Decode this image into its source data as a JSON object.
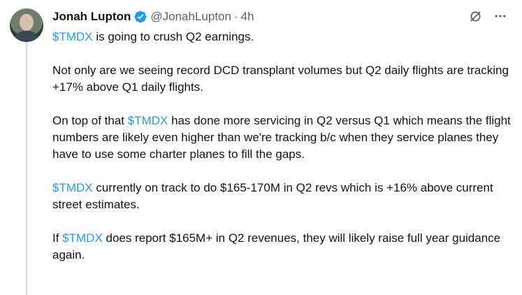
{
  "author": {
    "name": "Jonah Lupton",
    "handle": "@JonahLupton",
    "separator": "·",
    "time": "4h"
  },
  "icons": {
    "verified": "verified-badge-icon",
    "grok": "grok-icon",
    "more": "more-icon"
  },
  "colors": {
    "accent": "#1d9bf0",
    "text": "#0f1419",
    "muted": "#536471"
  },
  "tweet": {
    "p1": {
      "tag": "$TMDX",
      "text": " is going to crush Q2 earnings."
    },
    "p2": {
      "text": "Not only are we seeing record DCD transplant volumes but Q2 daily flights are tracking +17% above Q1 daily flights."
    },
    "p3": {
      "pre": "On top of that ",
      "tag": "$TMDX",
      "text": " has done more servicing in Q2 versus Q1 which means the flight numbers are likely even higher than we're tracking b/c when they service planes they have to use some charter planes to fill the gaps."
    },
    "p4": {
      "tag": "$TMDX",
      "text": " currently on track to do $165-170M in Q2 revs which is +16% above current street estimates."
    },
    "p5": {
      "pre": "If ",
      "tag": "$TMDX",
      "text": " does report $165M+ in Q2 revenues, they will likely raise full year guidance again."
    }
  }
}
